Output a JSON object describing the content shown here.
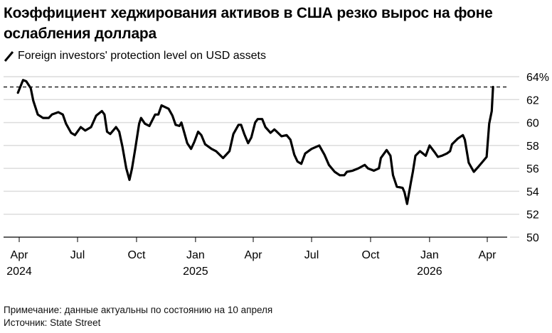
{
  "title": "Коэффициент хеджирования активов в США резко вырос на фоне ослабления доллара",
  "note": "Примечание: данные актуальны по состоянию на 10 апреля",
  "source": "Источник: State Street",
  "chart_data": {
    "type": "line",
    "title": "Коэффициент хеджирования активов в США резко вырос на фоне ослабления доллара",
    "legend": "top-left",
    "grid": true,
    "ylim": [
      50,
      64
    ],
    "yticks": [
      50,
      52,
      54,
      56,
      58,
      60,
      62,
      64
    ],
    "ytick_labels": [
      "50",
      "52",
      "54",
      "56",
      "58",
      "60",
      "62",
      "64%"
    ],
    "xlim": [
      "2024-03-30",
      "2026-04-10"
    ],
    "xticks": [
      {
        "date": "2024-04-01",
        "label": "Apr",
        "year": "2024"
      },
      {
        "date": "2024-07-01",
        "label": "Jul",
        "year": ""
      },
      {
        "date": "2024-10-01",
        "label": "Oct",
        "year": ""
      },
      {
        "date": "2025-01-01",
        "label": "Jan",
        "year": "2025"
      },
      {
        "date": "2025-04-01",
        "label": "Apr",
        "year": ""
      },
      {
        "date": "2025-07-01",
        "label": "Jul",
        "year": ""
      },
      {
        "date": "2025-10-01",
        "label": "Oct",
        "year": ""
      },
      {
        "date": "2026-01-01",
        "label": "Jan",
        "year": "2026"
      },
      {
        "date": "2026-04-01",
        "label": "Apr",
        "year": ""
      }
    ],
    "reference_line": {
      "value": 63.1,
      "style": "dashed"
    },
    "line_color": "#000000",
    "series": [
      {
        "name": "Foreign investors' protection level on USD assets",
        "points": [
          [
            "2024-03-30",
            62.6
          ],
          [
            "2024-04-07",
            63.7
          ],
          [
            "2024-04-12",
            63.6
          ],
          [
            "2024-04-19",
            63.0
          ],
          [
            "2024-04-23",
            61.9
          ],
          [
            "2024-04-30",
            60.7
          ],
          [
            "2024-05-08",
            60.4
          ],
          [
            "2024-05-17",
            60.4
          ],
          [
            "2024-05-22",
            60.7
          ],
          [
            "2024-06-01",
            60.9
          ],
          [
            "2024-06-08",
            60.7
          ],
          [
            "2024-06-13",
            59.9
          ],
          [
            "2024-06-21",
            59.1
          ],
          [
            "2024-06-27",
            58.9
          ],
          [
            "2024-07-06",
            59.6
          ],
          [
            "2024-07-13",
            59.3
          ],
          [
            "2024-07-22",
            59.6
          ],
          [
            "2024-07-30",
            60.6
          ],
          [
            "2024-08-08",
            61.0
          ],
          [
            "2024-08-12",
            60.7
          ],
          [
            "2024-08-16",
            59.2
          ],
          [
            "2024-08-21",
            59.0
          ],
          [
            "2024-08-30",
            59.6
          ],
          [
            "2024-09-04",
            59.2
          ],
          [
            "2024-09-09",
            57.9
          ],
          [
            "2024-09-15",
            56.0
          ],
          [
            "2024-09-20",
            55.0
          ],
          [
            "2024-09-24",
            56.0
          ],
          [
            "2024-09-29",
            57.7
          ],
          [
            "2024-10-05",
            59.9
          ],
          [
            "2024-10-08",
            60.4
          ],
          [
            "2024-10-14",
            59.9
          ],
          [
            "2024-10-21",
            59.7
          ],
          [
            "2024-10-30",
            60.7
          ],
          [
            "2024-11-04",
            60.7
          ],
          [
            "2024-11-09",
            61.5
          ],
          [
            "2024-11-20",
            61.2
          ],
          [
            "2024-11-26",
            60.6
          ],
          [
            "2024-12-01",
            59.8
          ],
          [
            "2024-12-07",
            59.7
          ],
          [
            "2024-12-10",
            60.0
          ],
          [
            "2024-12-14",
            59.2
          ],
          [
            "2024-12-19",
            58.2
          ],
          [
            "2024-12-25",
            57.7
          ],
          [
            "2024-12-30",
            58.3
          ],
          [
            "2025-01-05",
            59.2
          ],
          [
            "2025-01-10",
            58.9
          ],
          [
            "2025-01-16",
            58.1
          ],
          [
            "2025-01-26",
            57.7
          ],
          [
            "2025-02-02",
            57.5
          ],
          [
            "2025-02-13",
            56.9
          ],
          [
            "2025-02-23",
            57.5
          ],
          [
            "2025-03-01",
            59.0
          ],
          [
            "2025-03-09",
            59.8
          ],
          [
            "2025-03-13",
            59.8
          ],
          [
            "2025-03-18",
            59.0
          ],
          [
            "2025-03-24",
            58.2
          ],
          [
            "2025-03-29",
            58.7
          ],
          [
            "2025-04-04",
            60.0
          ],
          [
            "2025-04-08",
            60.3
          ],
          [
            "2025-04-15",
            60.3
          ],
          [
            "2025-04-20",
            59.6
          ],
          [
            "2025-04-28",
            59.1
          ],
          [
            "2025-05-04",
            59.4
          ],
          [
            "2025-05-06",
            59.3
          ],
          [
            "2025-05-15",
            58.8
          ],
          [
            "2025-05-23",
            58.9
          ],
          [
            "2025-05-29",
            58.5
          ],
          [
            "2025-06-04",
            57.2
          ],
          [
            "2025-06-09",
            56.6
          ],
          [
            "2025-06-15",
            56.4
          ],
          [
            "2025-06-21",
            57.3
          ],
          [
            "2025-07-01",
            57.7
          ],
          [
            "2025-07-13",
            58.0
          ],
          [
            "2025-07-21",
            57.2
          ],
          [
            "2025-07-28",
            56.3
          ],
          [
            "2025-08-06",
            55.7
          ],
          [
            "2025-08-14",
            55.4
          ],
          [
            "2025-08-21",
            55.4
          ],
          [
            "2025-08-25",
            55.7
          ],
          [
            "2025-09-03",
            55.8
          ],
          [
            "2025-09-12",
            56.0
          ],
          [
            "2025-09-22",
            56.3
          ],
          [
            "2025-09-27",
            56.0
          ],
          [
            "2025-10-06",
            55.8
          ],
          [
            "2025-10-14",
            56.0
          ],
          [
            "2025-10-17",
            56.9
          ],
          [
            "2025-10-26",
            57.6
          ],
          [
            "2025-11-01",
            57.1
          ],
          [
            "2025-11-05",
            55.4
          ],
          [
            "2025-11-11",
            54.4
          ],
          [
            "2025-11-20",
            54.3
          ],
          [
            "2025-11-23",
            53.9
          ],
          [
            "2025-11-27",
            52.9
          ],
          [
            "2025-12-03",
            54.8
          ],
          [
            "2025-12-06",
            55.7
          ],
          [
            "2025-12-10",
            57.1
          ],
          [
            "2025-12-17",
            57.5
          ],
          [
            "2025-12-26",
            57.1
          ],
          [
            "2026-01-01",
            58.0
          ],
          [
            "2026-01-09",
            57.4
          ],
          [
            "2026-01-14",
            57.0
          ],
          [
            "2026-01-20",
            57.1
          ],
          [
            "2026-01-28",
            57.3
          ],
          [
            "2026-02-02",
            57.5
          ],
          [
            "2026-02-05",
            58.1
          ],
          [
            "2026-02-14",
            58.6
          ],
          [
            "2026-02-22",
            58.9
          ],
          [
            "2026-02-25",
            58.5
          ],
          [
            "2026-03-03",
            56.5
          ],
          [
            "2026-03-11",
            55.7
          ],
          [
            "2026-03-19",
            56.2
          ],
          [
            "2026-03-25",
            56.6
          ],
          [
            "2026-03-31",
            57.0
          ],
          [
            "2026-04-04",
            59.9
          ],
          [
            "2026-04-08",
            61.0
          ],
          [
            "2026-04-10",
            63.1
          ]
        ]
      }
    ]
  }
}
